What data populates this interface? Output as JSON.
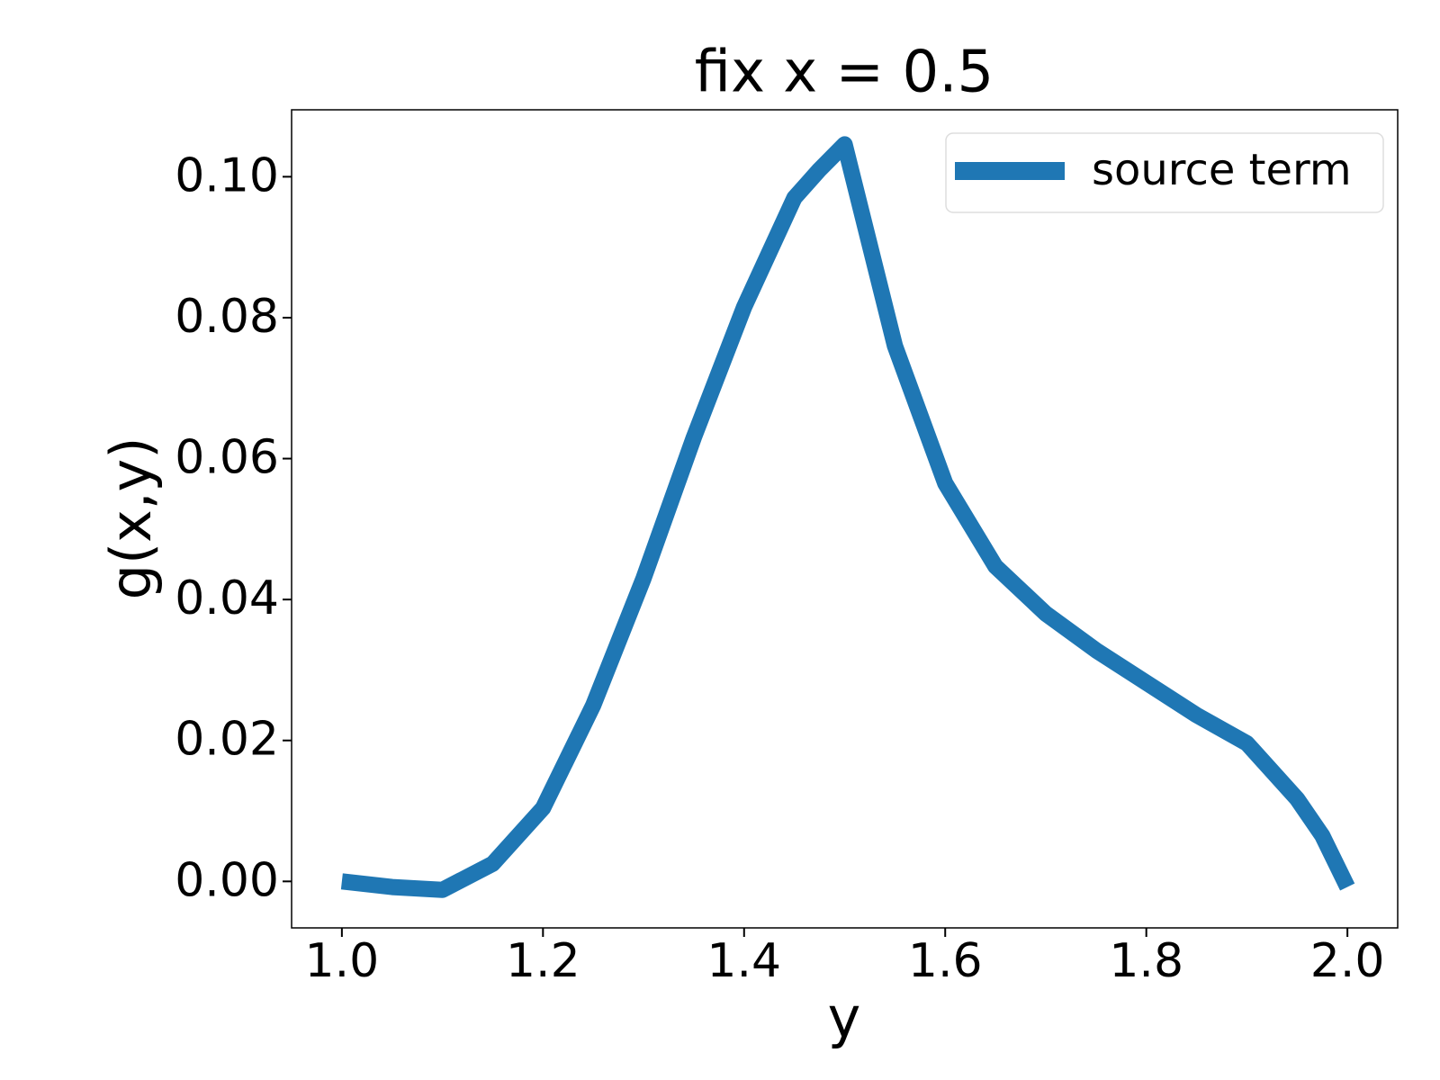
{
  "chart_data": {
    "type": "line",
    "title": "fix x = 0.5",
    "x_label": "y",
    "y_label": "g(x,y)",
    "x": [
      1.0,
      1.05,
      1.1,
      1.15,
      1.2,
      1.25,
      1.3,
      1.35,
      1.4,
      1.45,
      1.475,
      1.5,
      1.55,
      1.6,
      1.65,
      1.7,
      1.75,
      1.8,
      1.85,
      1.9,
      1.95,
      1.975,
      2.0
    ],
    "series": [
      {
        "name": "source term",
        "color": "#1f77b4",
        "values": [
          0.0,
          -0.0008,
          -0.0012,
          0.0025,
          0.0104,
          0.025,
          0.043,
          0.063,
          0.0815,
          0.097,
          0.101,
          0.1046,
          0.076,
          0.0565,
          0.0447,
          0.038,
          0.0328,
          0.0282,
          0.0236,
          0.0196,
          0.0117,
          0.0065,
          -0.0008
        ]
      }
    ],
    "xlim": [
      0.95,
      2.05
    ],
    "ylim": [
      -0.0066,
      0.1095
    ],
    "xticks": [
      {
        "value": 1,
        "label": "1.0"
      },
      {
        "value": 1.2,
        "label": "1.2"
      },
      {
        "value": 1.4,
        "label": "1.4"
      },
      {
        "value": 1.6,
        "label": "1.6"
      },
      {
        "value": 1.8,
        "label": "1.8"
      },
      {
        "value": 2,
        "label": "2.0"
      }
    ],
    "yticks": [
      {
        "value": 0,
        "label": "0.00"
      },
      0.02,
      0.04,
      0.06,
      0.08,
      {
        "value": 0.1,
        "label": "0.10"
      }
    ],
    "grid": false,
    "legend": "upper right"
  }
}
